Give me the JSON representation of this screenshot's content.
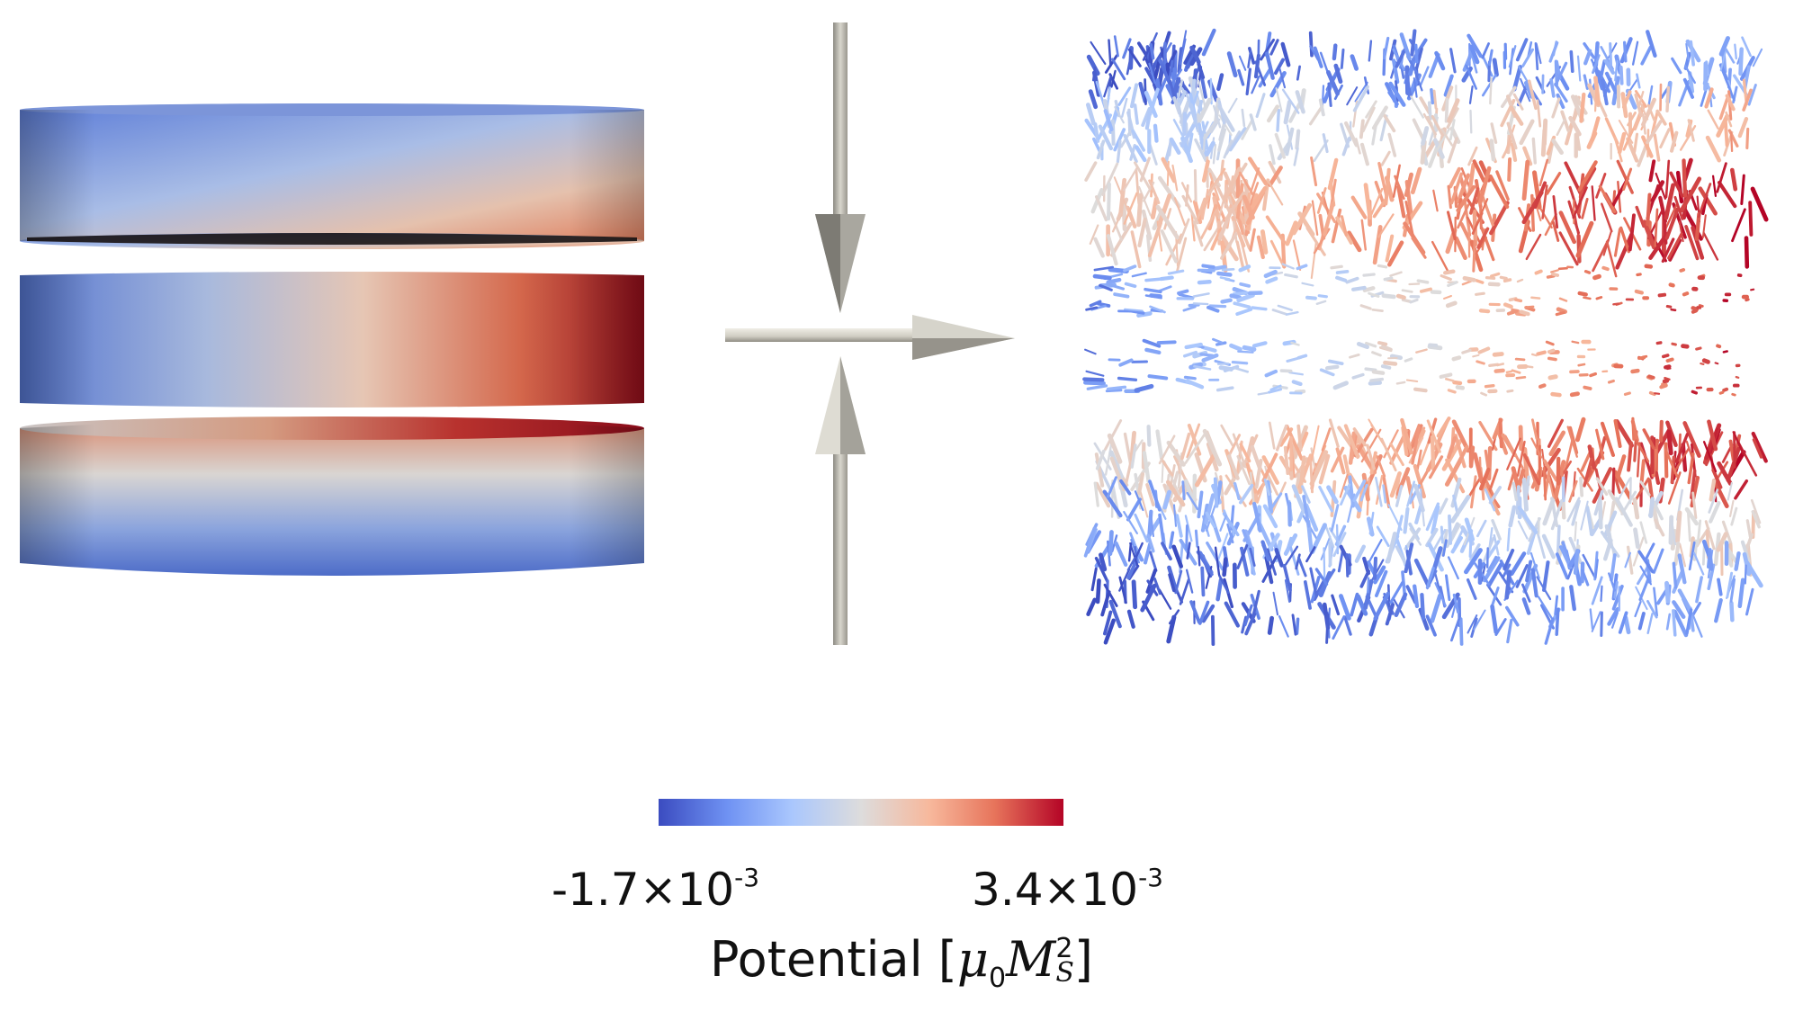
{
  "colorbar": {
    "min_mantissa": "-1.7",
    "max_mantissa": "3.4",
    "times_ten": "×10",
    "exponent": "-3",
    "label": "Potential",
    "unit_open": "[",
    "unit_mu": "μ",
    "unit_mu_sub": "0",
    "unit_M": "M",
    "unit_M_sup": "2",
    "unit_M_sub": "S",
    "unit_close": "]",
    "colors": [
      "#3b4cc0",
      "#6f92f3",
      "#aac7fd",
      "#dddcdc",
      "#f7b89c",
      "#e7745b",
      "#b40426"
    ]
  },
  "icons": {
    "left_panel": "stacked-disks-potential",
    "center": "axis-arrows-glyph",
    "right_panel": "vector-field-glyphs"
  }
}
